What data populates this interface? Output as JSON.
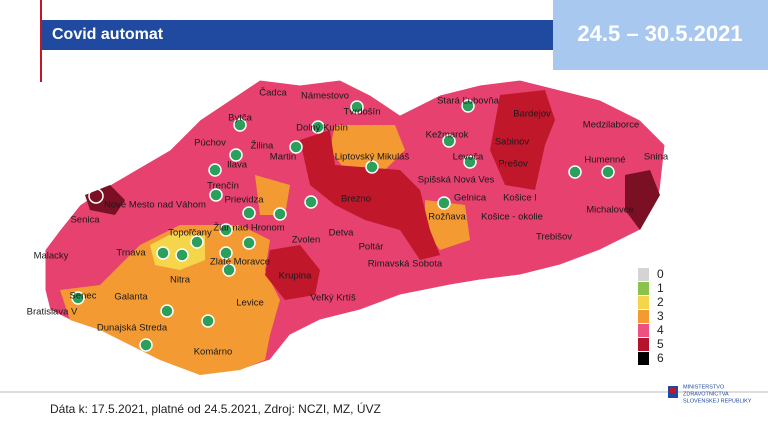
{
  "header": {
    "title": "Covid automat",
    "date_range": "24.5 – 30.5.2021"
  },
  "map": {
    "districts": [
      "Čadca",
      "Námestovo",
      "Tvrdošín",
      "Bytča",
      "Dolný Kubín",
      "Púchov",
      "Žilina",
      "Martin",
      "Liptovský Mikuláš",
      "Stará Ľubovňa",
      "Bardejov",
      "Medzilaborce",
      "Kežmarok",
      "Levoča",
      "Sabinov",
      "Prešov",
      "Humenné",
      "Snina",
      "Ilava",
      "Trenčín",
      "Spišská Nová Ves",
      "Gelnica",
      "Košice I",
      "Michalovce",
      "Nové Mesto nad Váhom",
      "Prievidza",
      "Brezno",
      "Rožňava",
      "Košice - okolie",
      "Senica",
      "Žiar nad Hronom",
      "Topoľčany",
      "Detva",
      "Trebišov",
      "Zvolen",
      "Poltár",
      "Zlaté Moravce",
      "Malacky",
      "Trnava",
      "Rimavská Sobota",
      "Nitra",
      "Krupina",
      "Veľký Krtíš",
      "Senec",
      "Galanta",
      "Levice",
      "Bratislava V",
      "Dunajská Streda",
      "Komárno"
    ]
  },
  "legend": [
    {
      "label": "0",
      "color": "#d4d4d4"
    },
    {
      "label": "1",
      "color": "#8bc34a"
    },
    {
      "label": "2",
      "color": "#f5d64a"
    },
    {
      "label": "3",
      "color": "#f39a33"
    },
    {
      "label": "4",
      "color": "#ee5080"
    },
    {
      "label": "5",
      "color": "#b5142d"
    },
    {
      "label": "6",
      "color": "#000000"
    }
  ],
  "footer": {
    "source": "Dáta k: 17.5.2021, platné od 24.5.2021, Zdroj: NCZI, MZ, ÚVZ",
    "logo": [
      "MINISTERSTVO",
      "ZDRAVOTNÍCTVA",
      "SLOVENSKEJ REPUBLIKY"
    ]
  }
}
